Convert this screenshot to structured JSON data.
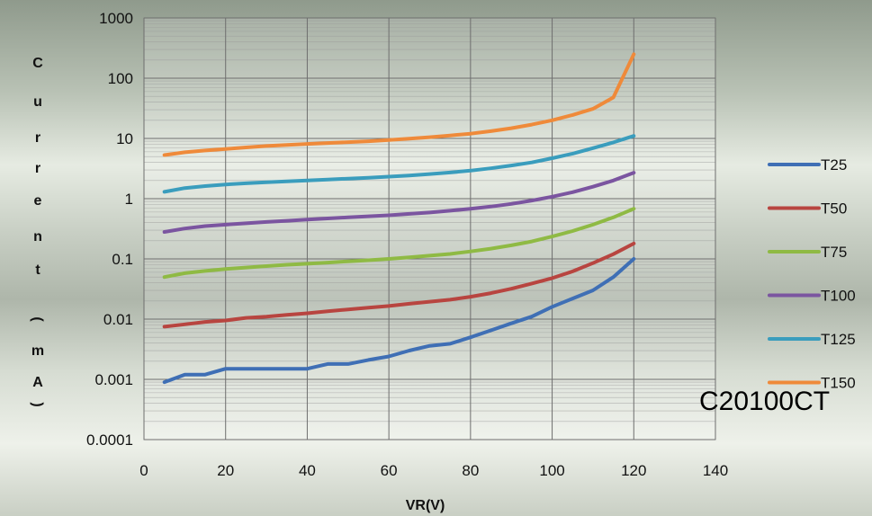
{
  "chart_data": {
    "type": "line",
    "title": "",
    "xlabel": "VR(V)",
    "ylabel": "Current(mA)",
    "xlim": [
      0,
      140
    ],
    "ylim": [
      0.0001,
      1000
    ],
    "ylog": true,
    "xticks": [
      "0",
      "20",
      "40",
      "60",
      "80",
      "100",
      "120",
      "140"
    ],
    "yticks": [
      "0.0001",
      "0.001",
      "0.01",
      "0.1",
      "1",
      "10",
      "100",
      "1000"
    ],
    "grid": true,
    "legend_position": "right",
    "x": [
      5,
      10,
      15,
      20,
      25,
      30,
      35,
      40,
      45,
      50,
      55,
      60,
      65,
      70,
      75,
      80,
      85,
      90,
      95,
      100,
      105,
      110,
      115,
      120
    ],
    "series": [
      {
        "name": "T25",
        "color": "#3f6fb5",
        "values": [
          0.0009,
          0.0012,
          0.0012,
          0.0015,
          0.0015,
          0.0015,
          0.0015,
          0.0015,
          0.0018,
          0.0018,
          0.0021,
          0.0024,
          0.003,
          0.0036,
          0.0039,
          0.005,
          0.0065,
          0.0085,
          0.011,
          0.016,
          0.022,
          0.03,
          0.05,
          0.1
        ]
      },
      {
        "name": "T50",
        "color": "#b84540",
        "values": [
          0.0075,
          0.0082,
          0.009,
          0.0095,
          0.0105,
          0.011,
          0.0118,
          0.0125,
          0.0135,
          0.0145,
          0.0155,
          0.0165,
          0.018,
          0.0195,
          0.021,
          0.0235,
          0.027,
          0.032,
          0.039,
          0.048,
          0.062,
          0.085,
          0.12,
          0.18
        ]
      },
      {
        "name": "T75",
        "color": "#8fba44",
        "values": [
          0.05,
          0.058,
          0.063,
          0.068,
          0.072,
          0.076,
          0.08,
          0.083,
          0.087,
          0.091,
          0.095,
          0.1,
          0.106,
          0.113,
          0.121,
          0.133,
          0.148,
          0.168,
          0.195,
          0.235,
          0.29,
          0.37,
          0.49,
          0.68
        ]
      },
      {
        "name": "T100",
        "color": "#7b55a0",
        "values": [
          0.28,
          0.32,
          0.35,
          0.37,
          0.39,
          0.41,
          0.43,
          0.45,
          0.47,
          0.49,
          0.51,
          0.53,
          0.56,
          0.59,
          0.63,
          0.68,
          0.74,
          0.82,
          0.93,
          1.08,
          1.28,
          1.58,
          2.0,
          2.7
        ]
      },
      {
        "name": "T125",
        "color": "#3a9dbd",
        "values": [
          1.3,
          1.5,
          1.62,
          1.72,
          1.8,
          1.87,
          1.94,
          2.0,
          2.07,
          2.15,
          2.23,
          2.32,
          2.43,
          2.56,
          2.72,
          2.92,
          3.2,
          3.55,
          4.0,
          4.7,
          5.6,
          6.9,
          8.6,
          11
        ]
      },
      {
        "name": "T150",
        "color": "#ef8a3a",
        "values": [
          5.3,
          5.9,
          6.3,
          6.7,
          7.1,
          7.5,
          7.8,
          8.1,
          8.4,
          8.7,
          9.0,
          9.4,
          9.9,
          10.5,
          11.2,
          12.0,
          13.2,
          14.8,
          17.0,
          20.0,
          24.5,
          31.0,
          48.0,
          250.0
        ]
      }
    ],
    "annotation": "C20100CT"
  }
}
